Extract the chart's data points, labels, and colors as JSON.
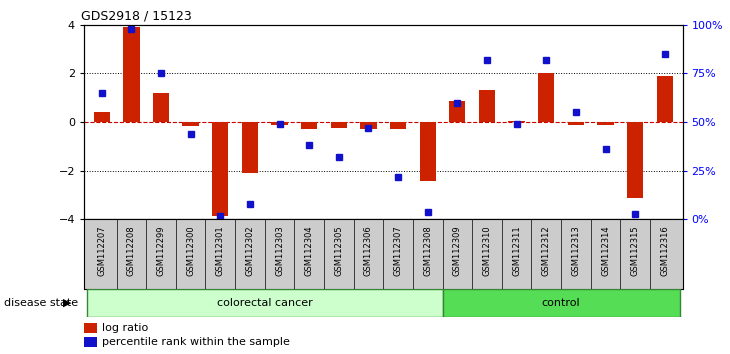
{
  "title": "GDS2918 / 15123",
  "samples": [
    "GSM112207",
    "GSM112208",
    "GSM112299",
    "GSM112300",
    "GSM112301",
    "GSM112302",
    "GSM112303",
    "GSM112304",
    "GSM112305",
    "GSM112306",
    "GSM112307",
    "GSM112308",
    "GSM112309",
    "GSM112310",
    "GSM112311",
    "GSM112312",
    "GSM112313",
    "GSM112314",
    "GSM112315",
    "GSM112316"
  ],
  "log_ratio": [
    0.4,
    3.9,
    1.2,
    -0.15,
    -3.85,
    -2.1,
    -0.1,
    -0.3,
    -0.25,
    -0.3,
    -0.3,
    -2.4,
    0.85,
    1.3,
    0.05,
    2.0,
    -0.1,
    -0.1,
    -3.1,
    1.9
  ],
  "percentile": [
    65,
    98,
    75,
    44,
    2,
    8,
    49,
    38,
    32,
    47,
    22,
    4,
    60,
    82,
    49,
    82,
    55,
    36,
    3,
    85
  ],
  "colorectal_count": 12,
  "control_count": 8,
  "ylim_left": [
    -4,
    4
  ],
  "ylim_right": [
    0,
    100
  ],
  "yticks_left": [
    -4,
    -2,
    0,
    2,
    4
  ],
  "yticks_right": [
    0,
    25,
    50,
    75,
    100
  ],
  "ytick_labels_right": [
    "0%",
    "25%",
    "50%",
    "75%",
    "100%"
  ],
  "bar_color": "#cc2200",
  "dot_color": "#1111cc",
  "bg_color": "#ffffff",
  "plot_bg": "#ffffff",
  "cancer_color": "#ccffcc",
  "control_color": "#55dd55",
  "cancer_label": "colorectal cancer",
  "control_label": "control",
  "disease_state_label": "disease state",
  "legend_bar_label": "log ratio",
  "legend_dot_label": "percentile rank within the sample",
  "hline_color": "#cc0000",
  "grid_color": "#000000",
  "tick_bg_color": "#cccccc"
}
